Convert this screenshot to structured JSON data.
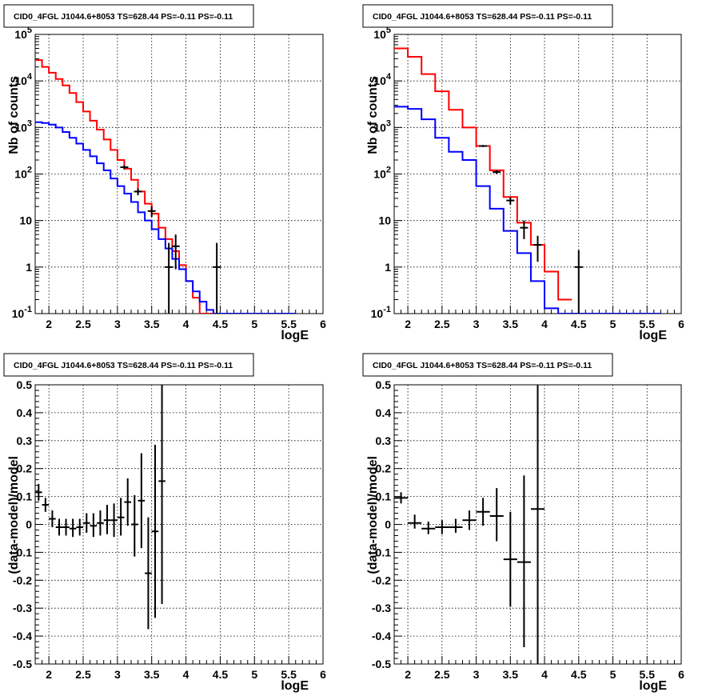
{
  "chart_data": [
    {
      "type": "step",
      "title": "CID0_4FGL J1044.6+8053 TS=628.44 PS=-0.11 PS=-0.11",
      "xlabel": "logE",
      "ylabel": "Nb of counts",
      "xlim": [
        1.8,
        6
      ],
      "ylim": [
        0.1,
        100000
      ],
      "yscale": "log",
      "grid": true,
      "x_ticks": [
        "2",
        "2.5",
        "3",
        "3.5",
        "4",
        "4.5",
        "5",
        "5.5",
        "6"
      ],
      "y_ticks": [
        "10^-1",
        "1",
        "10",
        "10^2",
        "10^3",
        "10^4",
        "10^5"
      ],
      "bin_width": 0.1,
      "series": [
        {
          "color": "#ff0000",
          "x": [
            1.8,
            1.9,
            2.0,
            2.1,
            2.2,
            2.3,
            2.4,
            2.5,
            2.6,
            2.7,
            2.8,
            2.9,
            3.0,
            3.1,
            3.2,
            3.3,
            3.4,
            3.5,
            3.6,
            3.7,
            3.8,
            3.9,
            4.0,
            4.1,
            4.2,
            4.3
          ],
          "values": [
            28000,
            20000,
            15000,
            11000,
            8000,
            5500,
            3500,
            2200,
            1400,
            900,
            550,
            330,
            200,
            130,
            75,
            42,
            23,
            14,
            7,
            4,
            2.2,
            1.1,
            0.5,
            0.22,
            0.1,
            0.1
          ]
        },
        {
          "color": "#0000ff",
          "x": [
            1.8,
            1.9,
            2.0,
            2.1,
            2.2,
            2.3,
            2.4,
            2.5,
            2.6,
            2.7,
            2.8,
            2.9,
            3.0,
            3.1,
            3.2,
            3.3,
            3.4,
            3.5,
            3.6,
            3.7,
            3.8,
            3.9,
            4.0,
            4.1,
            4.2,
            4.3,
            4.4,
            4.5,
            5.0,
            5.5
          ],
          "values": [
            1300,
            1250,
            1150,
            1000,
            800,
            600,
            450,
            330,
            240,
            170,
            120,
            80,
            55,
            38,
            25,
            15,
            10,
            6.5,
            4,
            2.5,
            1.5,
            0.9,
            0.5,
            0.3,
            0.18,
            0.12,
            0.1,
            0.1,
            0.1,
            0.1
          ]
        }
      ],
      "data_points": [
        {
          "x": 3.1,
          "y": 140,
          "yerr": 14
        },
        {
          "x": 3.3,
          "y": 42,
          "yerr": 7
        },
        {
          "x": 3.5,
          "y": 16,
          "yerr": 4
        },
        {
          "x": 3.75,
          "y": 1,
          "yerr_lo": 1,
          "yerr_hi": 2.3
        },
        {
          "x": 3.85,
          "y": 2.8,
          "yerr_lo": 1.9,
          "yerr_hi": 2.2
        },
        {
          "x": 4.45,
          "y": 1,
          "yerr_lo": 1,
          "yerr_hi": 2.3
        }
      ]
    },
    {
      "type": "step",
      "title": "CID0_4FGL J1044.6+8053 TS=628.44 PS=-0.11 PS=-0.11",
      "xlabel": "logE",
      "ylabel": "Nb of counts",
      "xlim": [
        1.8,
        6
      ],
      "ylim": [
        0.1,
        100000
      ],
      "yscale": "log",
      "grid": true,
      "x_ticks": [
        "2",
        "2.5",
        "3",
        "3.5",
        "4",
        "4.5",
        "5",
        "5.5",
        "6"
      ],
      "y_ticks": [
        "10^-1",
        "1",
        "10",
        "10^2",
        "10^3",
        "10^4",
        "10^5"
      ],
      "bin_width": 0.2,
      "series": [
        {
          "color": "#ff0000",
          "x": [
            1.8,
            2.0,
            2.2,
            2.4,
            2.6,
            2.8,
            3.0,
            3.2,
            3.4,
            3.6,
            3.8,
            4.0,
            4.2
          ],
          "values": [
            50000,
            33000,
            14000,
            6000,
            2400,
            1000,
            400,
            120,
            32,
            9,
            3,
            0.8,
            0.2
          ]
        },
        {
          "color": "#0000ff",
          "x": [
            1.8,
            2.0,
            2.2,
            2.4,
            2.6,
            2.8,
            3.0,
            3.2,
            3.4,
            3.6,
            3.8,
            4.0,
            4.2,
            4.4,
            5.0,
            5.5
          ],
          "values": [
            2800,
            2500,
            1500,
            600,
            300,
            200,
            55,
            18,
            6,
            2,
            0.5,
            0.13,
            0.1,
            0.1,
            0.1,
            0.1
          ]
        }
      ],
      "data_points": [
        {
          "x": 3.1,
          "y": 400,
          "yerr": 20
        },
        {
          "x": 3.3,
          "y": 110,
          "yerr": 10
        },
        {
          "x": 3.5,
          "y": 27,
          "yerr": 5
        },
        {
          "x": 3.7,
          "y": 7,
          "yerr": 3
        },
        {
          "x": 3.9,
          "y": 3,
          "yerr": 1.7
        },
        {
          "x": 4.5,
          "y": 1,
          "yerr_lo": 1,
          "yerr_hi": 1.3
        }
      ]
    },
    {
      "type": "errorbar",
      "title": "CID0_4FGL J1044.6+8053 TS=628.44 PS=-0.11 PS=-0.11",
      "xlabel": "logE",
      "ylabel": "(data-model)/model",
      "xlim": [
        1.8,
        6
      ],
      "ylim": [
        -0.5,
        0.5
      ],
      "grid": true,
      "x_ticks": [
        "2",
        "2.5",
        "3",
        "3.5",
        "4",
        "4.5",
        "5",
        "5.5",
        "6"
      ],
      "y_ticks": [
        "-0.5",
        "-0.4",
        "-0.3",
        "-0.2",
        "-0.1",
        "0",
        "0.1",
        "0.2",
        "0.3",
        "0.4",
        "0.5"
      ],
      "x_halfwidth": 0.05,
      "points": [
        {
          "x": 1.85,
          "y": 0.115,
          "lo": 0.085,
          "hi": 0.145
        },
        {
          "x": 1.95,
          "y": 0.07,
          "lo": 0.045,
          "hi": 0.095
        },
        {
          "x": 2.05,
          "y": 0.02,
          "lo": -0.01,
          "hi": 0.05
        },
        {
          "x": 2.15,
          "y": -0.01,
          "lo": -0.04,
          "hi": 0.02
        },
        {
          "x": 2.25,
          "y": -0.01,
          "lo": -0.04,
          "hi": 0.02
        },
        {
          "x": 2.35,
          "y": -0.015,
          "lo": -0.045,
          "hi": 0.02
        },
        {
          "x": 2.45,
          "y": -0.01,
          "lo": -0.04,
          "hi": 0.02
        },
        {
          "x": 2.55,
          "y": 0.005,
          "lo": -0.03,
          "hi": 0.04
        },
        {
          "x": 2.65,
          "y": -0.005,
          "lo": -0.045,
          "hi": 0.04
        },
        {
          "x": 2.75,
          "y": 0.005,
          "lo": -0.04,
          "hi": 0.05
        },
        {
          "x": 2.85,
          "y": 0.015,
          "lo": -0.035,
          "hi": 0.07
        },
        {
          "x": 2.95,
          "y": 0.015,
          "lo": -0.045,
          "hi": 0.075
        },
        {
          "x": 3.05,
          "y": 0.025,
          "lo": -0.04,
          "hi": 0.095
        },
        {
          "x": 3.15,
          "y": 0.08,
          "lo": -0.005,
          "hi": 0.165
        },
        {
          "x": 3.25,
          "y": 0.0,
          "lo": -0.115,
          "hi": 0.105
        },
        {
          "x": 3.35,
          "y": 0.085,
          "lo": -0.085,
          "hi": 0.255
        },
        {
          "x": 3.45,
          "y": -0.175,
          "lo": -0.375,
          "hi": 0.025
        },
        {
          "x": 3.55,
          "y": -0.025,
          "lo": -0.335,
          "hi": 0.285
        },
        {
          "x": 3.65,
          "y": 0.155,
          "lo": -0.285,
          "hi": 0.5
        }
      ]
    },
    {
      "type": "errorbar",
      "title": "CID0_4FGL J1044.6+8053 TS=628.44 PS=-0.11 PS=-0.11",
      "xlabel": "logE",
      "ylabel": "(data-model)/model",
      "xlim": [
        1.8,
        6
      ],
      "ylim": [
        -0.5,
        0.5
      ],
      "grid": true,
      "x_ticks": [
        "2",
        "2.5",
        "3",
        "3.5",
        "4",
        "4.5",
        "5",
        "5.5",
        "6"
      ],
      "y_ticks": [
        "-0.5",
        "-0.4",
        "-0.3",
        "-0.2",
        "-0.1",
        "0",
        "0.1",
        "0.2",
        "0.3",
        "0.4",
        "0.5"
      ],
      "x_halfwidth": 0.1,
      "points": [
        {
          "x": 1.9,
          "y": 0.095,
          "lo": 0.075,
          "hi": 0.115
        },
        {
          "x": 2.1,
          "y": 0.005,
          "lo": -0.015,
          "hi": 0.035
        },
        {
          "x": 2.3,
          "y": -0.015,
          "lo": -0.035,
          "hi": 0.01
        },
        {
          "x": 2.5,
          "y": -0.01,
          "lo": -0.035,
          "hi": 0.015
        },
        {
          "x": 2.7,
          "y": -0.01,
          "lo": -0.03,
          "hi": 0.02
        },
        {
          "x": 2.9,
          "y": 0.015,
          "lo": -0.02,
          "hi": 0.05
        },
        {
          "x": 3.1,
          "y": 0.045,
          "lo": -0.005,
          "hi": 0.095
        },
        {
          "x": 3.3,
          "y": 0.03,
          "lo": -0.06,
          "hi": 0.13
        },
        {
          "x": 3.5,
          "y": -0.125,
          "lo": -0.295,
          "hi": 0.045
        },
        {
          "x": 3.7,
          "y": -0.135,
          "lo": -0.44,
          "hi": 0.175
        },
        {
          "x": 3.9,
          "y": 0.055,
          "lo": -0.5,
          "hi": 0.5
        }
      ]
    }
  ]
}
